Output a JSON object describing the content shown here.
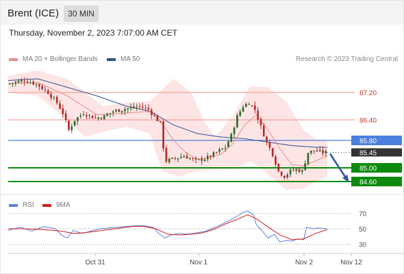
{
  "header": {
    "title": "Brent (ICE)",
    "timeframe": "30 MIN"
  },
  "datetime": "Thursday, November 2, 2023 7:07:00 AM CET",
  "legend": {
    "ma20": {
      "label": "MA 20 + Bollinger Bands",
      "color": "#f08a8a"
    },
    "ma50": {
      "label": "MA 50",
      "color": "#2f4f8f"
    },
    "copyright": "Research © 2023 Trading Central"
  },
  "rsi_legend": {
    "rsi": {
      "label": "RSI",
      "color": "#5b7fd8"
    },
    "ma9": {
      "label": "9MA",
      "color": "#d41a1a"
    }
  },
  "colors": {
    "bull_candle": "#2e6b2a",
    "bear_candle": "#b52a2a",
    "band_fill": "#fde0e0",
    "resistance": "#f4a29a",
    "pivot": "#4c7fe0",
    "support": "#0d8a0d",
    "arrow": "#2f5a9e"
  },
  "chart_data": [
    {
      "type": "candlestick",
      "title": "Brent (ICE)",
      "xlabel": "",
      "ylabel": "",
      "ylim": [
        84.2,
        88.0
      ],
      "x_ticks": [
        "Oct 31",
        "Nov 1",
        "Nov 2",
        "Nov 12"
      ],
      "levels": [
        {
          "value": "87.20",
          "kind": "resistance"
        },
        {
          "value": "86.40",
          "kind": "resistance"
        },
        {
          "value": "85.80",
          "kind": "pivot"
        },
        {
          "value": "85.00",
          "kind": "support"
        },
        {
          "value": "84.60",
          "kind": "support"
        }
      ],
      "last_price": "85.45",
      "close_path": [
        [
          0,
          87.45
        ],
        [
          6,
          87.55
        ],
        [
          10,
          87.45
        ],
        [
          14,
          87.2
        ],
        [
          17,
          86.9
        ],
        [
          19,
          86.6
        ],
        [
          21,
          86.1
        ],
        [
          23,
          86.4
        ],
        [
          26,
          86.6
        ],
        [
          30,
          86.45
        ],
        [
          33,
          86.5
        ],
        [
          36,
          86.65
        ],
        [
          39,
          86.7
        ],
        [
          42,
          86.75
        ],
        [
          45,
          86.8
        ],
        [
          48,
          86.7
        ],
        [
          50,
          86.5
        ],
        [
          52,
          86.3
        ],
        [
          53,
          85.6
        ],
        [
          54,
          85.2
        ],
        [
          56,
          85.25
        ],
        [
          60,
          85.35
        ],
        [
          64,
          85.2
        ],
        [
          68,
          85.3
        ],
        [
          71,
          85.45
        ],
        [
          74,
          85.6
        ],
        [
          76,
          85.95
        ],
        [
          78,
          86.5
        ],
        [
          80,
          86.8
        ],
        [
          82,
          86.9
        ],
        [
          84,
          86.7
        ],
        [
          86,
          86.2
        ],
        [
          88,
          85.75
        ],
        [
          90,
          85.4
        ],
        [
          92,
          84.9
        ],
        [
          94,
          84.75
        ],
        [
          96,
          84.9
        ],
        [
          98,
          84.95
        ],
        [
          100,
          84.9
        ],
        [
          102,
          85.45
        ],
        [
          104,
          85.5
        ],
        [
          107,
          85.45
        ],
        [
          108,
          85.45
        ]
      ],
      "ma20": [
        [
          0,
          87.45
        ],
        [
          10,
          87.5
        ],
        [
          20,
          87.1
        ],
        [
          30,
          86.55
        ],
        [
          40,
          86.6
        ],
        [
          48,
          86.65
        ],
        [
          52,
          86.3
        ],
        [
          56,
          85.8
        ],
        [
          60,
          85.45
        ],
        [
          64,
          85.25
        ],
        [
          68,
          85.3
        ],
        [
          72,
          85.4
        ],
        [
          76,
          85.7
        ],
        [
          80,
          86.25
        ],
        [
          84,
          86.55
        ],
        [
          88,
          86.1
        ],
        [
          92,
          85.55
        ],
        [
          96,
          85.1
        ],
        [
          100,
          85.05
        ],
        [
          104,
          85.2
        ],
        [
          108,
          85.35
        ]
      ],
      "ma50": [
        [
          0,
          87.55
        ],
        [
          10,
          87.6
        ],
        [
          20,
          87.35
        ],
        [
          30,
          87.1
        ],
        [
          40,
          86.8
        ],
        [
          48,
          86.65
        ],
        [
          56,
          86.25
        ],
        [
          64,
          86.0
        ],
        [
          72,
          85.9
        ],
        [
          80,
          85.85
        ],
        [
          88,
          85.75
        ],
        [
          96,
          85.65
        ],
        [
          104,
          85.6
        ],
        [
          108,
          85.6
        ]
      ],
      "bb_upper": [
        [
          0,
          87.7
        ],
        [
          10,
          87.85
        ],
        [
          20,
          87.6
        ],
        [
          26,
          87.2
        ],
        [
          32,
          86.8
        ],
        [
          40,
          86.9
        ],
        [
          48,
          86.95
        ],
        [
          56,
          87.6
        ],
        [
          62,
          87.2
        ],
        [
          66,
          86.4
        ],
        [
          70,
          85.9
        ],
        [
          76,
          86.5
        ],
        [
          82,
          87.4
        ],
        [
          88,
          87.35
        ],
        [
          94,
          86.95
        ],
        [
          100,
          86.1
        ],
        [
          104,
          85.85
        ],
        [
          108,
          85.8
        ]
      ],
      "bb_lower": [
        [
          0,
          87.2
        ],
        [
          10,
          87.1
        ],
        [
          20,
          86.4
        ],
        [
          26,
          85.9
        ],
        [
          32,
          86.05
        ],
        [
          40,
          86.2
        ],
        [
          48,
          86.0
        ],
        [
          52,
          84.9
        ],
        [
          58,
          84.75
        ],
        [
          64,
          84.9
        ],
        [
          70,
          84.95
        ],
        [
          76,
          84.95
        ],
        [
          82,
          85.2
        ],
        [
          88,
          84.8
        ],
        [
          94,
          84.35
        ],
        [
          100,
          84.4
        ],
        [
          104,
          84.6
        ],
        [
          108,
          84.75
        ]
      ],
      "forecast": {
        "from": "85.45",
        "to": "84.60"
      }
    },
    {
      "type": "line",
      "title": "RSI",
      "xlabel": "",
      "ylabel": "",
      "ylim": [
        20,
        80
      ],
      "y_ticks": [
        "70",
        "50",
        "30"
      ],
      "series": [
        {
          "name": "RSI",
          "values": [
            [
              0,
              48
            ],
            [
              4,
              52
            ],
            [
              8,
              47
            ],
            [
              12,
              53
            ],
            [
              16,
              50
            ],
            [
              18,
              42
            ],
            [
              20,
              38
            ],
            [
              22,
              48
            ],
            [
              25,
              44
            ],
            [
              28,
              47
            ],
            [
              31,
              50
            ],
            [
              34,
              51
            ],
            [
              37,
              52
            ],
            [
              40,
              53
            ],
            [
              43,
              54
            ],
            [
              46,
              54
            ],
            [
              49,
              52
            ],
            [
              51,
              44
            ],
            [
              53,
              38
            ],
            [
              55,
              42
            ],
            [
              58,
              44
            ],
            [
              61,
              43
            ],
            [
              64,
              45
            ],
            [
              67,
              47
            ],
            [
              70,
              52
            ],
            [
              73,
              57
            ],
            [
              76,
              63
            ],
            [
              79,
              70
            ],
            [
              81,
              73
            ],
            [
              83,
              68
            ],
            [
              84,
              55
            ],
            [
              86,
              47
            ],
            [
              88,
              38
            ],
            [
              90,
              43
            ],
            [
              92,
              33
            ],
            [
              94,
              35
            ],
            [
              96,
              34
            ],
            [
              98,
              37
            ],
            [
              100,
              36
            ],
            [
              101,
              52
            ],
            [
              103,
              50
            ],
            [
              105,
              51
            ],
            [
              108,
              50
            ]
          ]
        },
        {
          "name": "9MA",
          "values": [
            [
              0,
              50
            ],
            [
              6,
              50
            ],
            [
              12,
              49
            ],
            [
              18,
              47
            ],
            [
              22,
              44
            ],
            [
              26,
              45
            ],
            [
              30,
              47
            ],
            [
              34,
              49
            ],
            [
              38,
              51
            ],
            [
              42,
              53
            ],
            [
              46,
              53
            ],
            [
              50,
              50
            ],
            [
              54,
              43
            ],
            [
              58,
              42
            ],
            [
              62,
              43
            ],
            [
              66,
              45
            ],
            [
              70,
              50
            ],
            [
              74,
              57
            ],
            [
              78,
              63
            ],
            [
              81,
              68
            ],
            [
              84,
              63
            ],
            [
              88,
              52
            ],
            [
              92,
              42
            ],
            [
              96,
              36
            ],
            [
              100,
              37
            ],
            [
              104,
              44
            ],
            [
              108,
              49
            ]
          ]
        }
      ]
    }
  ]
}
